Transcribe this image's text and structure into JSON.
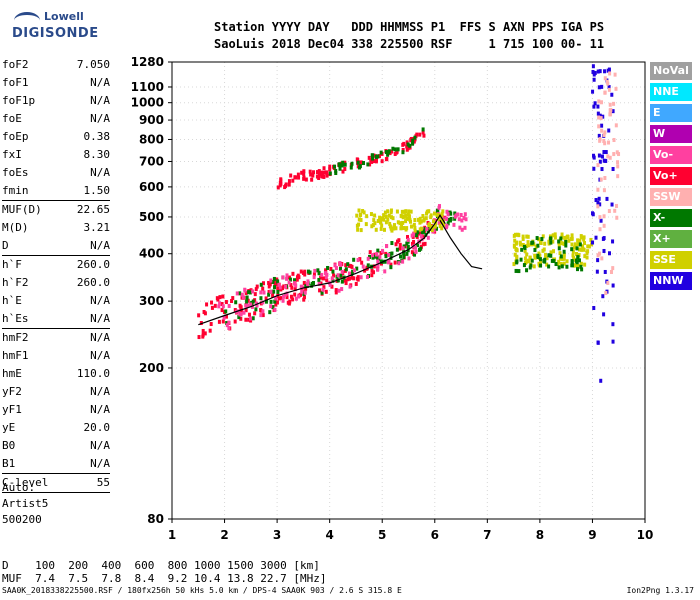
{
  "logo": {
    "line1": "Lowell",
    "line2": "DIGISONDE"
  },
  "header": {
    "line1": "Station YYYY DAY   DDD HHMMSS P1  FFS S AXN PPS IGA PS",
    "line2": "SaoLuis 2018 Dec04 338 225500 RSF     1 715 100 00- 11"
  },
  "params": {
    "group1": [
      {
        "label": "foF2",
        "value": "7.050"
      },
      {
        "label": "foF1",
        "value": "N/A"
      },
      {
        "label": "foF1p",
        "value": "N/A"
      },
      {
        "label": "foE",
        "value": "N/A"
      },
      {
        "label": "foEp",
        "value": "0.38"
      },
      {
        "label": "fxI",
        "value": "8.30"
      },
      {
        "label": "foEs",
        "value": "N/A"
      },
      {
        "label": "fmin",
        "value": "1.50"
      }
    ],
    "group2": [
      {
        "label": "MUF(D)",
        "value": "22.65"
      },
      {
        "label": "M(D)",
        "value": "3.21"
      },
      {
        "label": "D",
        "value": "N/A"
      }
    ],
    "group3": [
      {
        "label": "h`F",
        "value": "260.0"
      },
      {
        "label": "h`F2",
        "value": "260.0"
      },
      {
        "label": "h`E",
        "value": "N/A"
      },
      {
        "label": "h`Es",
        "value": "N/A"
      }
    ],
    "group4": [
      {
        "label": "hmF2",
        "value": "N/A"
      },
      {
        "label": "hmF1",
        "value": "N/A"
      },
      {
        "label": "hmE",
        "value": "110.0"
      },
      {
        "label": "yF2",
        "value": "N/A"
      },
      {
        "label": "yF1",
        "value": "N/A"
      },
      {
        "label": "yE",
        "value": "20.0"
      },
      {
        "label": "B0",
        "value": "N/A"
      },
      {
        "label": "B1",
        "value": "N/A"
      }
    ],
    "clevel": {
      "label": "C-level",
      "value": "55"
    }
  },
  "auto": {
    "line1": "Auto:",
    "line2": "Artist5",
    "line3": "500200"
  },
  "bottom": {
    "d_row": "D    100  200  400  600  800 1000 1500 3000 [km]",
    "muf_row": "MUF  7.4  7.5  7.8  8.4  9.2 10.4 13.8 22.7 [MHz]"
  },
  "footer": "SAA0K_2018338225500.RSF / 180fx256h 50 kHs 5.0 km / DPS-4 SAA0K 903 / 2.6 S 315.8 E",
  "version": "Ion2Png 1.3.17",
  "legend": [
    {
      "label": "NoVal",
      "color": "#a0a0a0"
    },
    {
      "label": "NNE",
      "color": "#00e8ff"
    },
    {
      "label": "E",
      "color": "#40a8ff"
    },
    {
      "label": "W",
      "color": "#b000b0"
    },
    {
      "label": "Vo-",
      "color": "#ff40a0"
    },
    {
      "label": "Vo+",
      "color": "#ff0030"
    },
    {
      "label": "SSW",
      "color": "#ffb0b0"
    },
    {
      "label": "X-",
      "color": "#007800"
    },
    {
      "label": "X+",
      "color": "#60b040"
    },
    {
      "label": "SSE",
      "color": "#d0d000"
    },
    {
      "label": "NNW",
      "color": "#2000e0"
    }
  ],
  "chart_data": {
    "type": "scatter",
    "title": "",
    "xlabel": "",
    "ylabel": "",
    "xlim": [
      1,
      10
    ],
    "ylim": [
      80,
      1280
    ],
    "y_scale": "log",
    "x_ticks": [
      1,
      2,
      3,
      4,
      5,
      6,
      7,
      8,
      9,
      10
    ],
    "y_ticks": [
      80,
      200,
      300,
      400,
      500,
      600,
      700,
      800,
      900,
      1000,
      1100,
      1280
    ],
    "traces": [
      {
        "name": "O-trace",
        "color": "#000000",
        "points": [
          [
            1.5,
            260
          ],
          [
            2.0,
            275
          ],
          [
            2.5,
            290
          ],
          [
            3.0,
            310
          ],
          [
            3.5,
            325
          ],
          [
            4.0,
            335
          ],
          [
            4.5,
            355
          ],
          [
            5.0,
            380
          ],
          [
            5.5,
            410
          ],
          [
            5.8,
            440
          ],
          [
            6.0,
            480
          ],
          [
            6.1,
            505
          ],
          [
            6.2,
            480
          ]
        ]
      },
      {
        "name": "X-trace",
        "color": "#000000",
        "points": [
          [
            6.1,
            490
          ],
          [
            6.3,
            440
          ],
          [
            6.5,
            400
          ],
          [
            6.7,
            370
          ],
          [
            6.9,
            365
          ]
        ]
      }
    ],
    "scatter_clusters": [
      {
        "series": "Vo+",
        "x_range": [
          1.5,
          6.2
        ],
        "y_along": "O-trace",
        "count": 220
      },
      {
        "series": "X-",
        "x_range": [
          2.0,
          6.4
        ],
        "y_along": "O-trace",
        "count": 120
      },
      {
        "series": "Vo-",
        "x_range": [
          1.8,
          6.6
        ],
        "y_along": "O-trace",
        "count": 140
      },
      {
        "series": "Vo+",
        "x_range": [
          3.0,
          5.8
        ],
        "y_along": "echo-F",
        "count": 110
      },
      {
        "series": "X-",
        "x_range": [
          4.0,
          5.8
        ],
        "y_along": "echo-F",
        "count": 40
      },
      {
        "series": "SSE",
        "x_range": [
          4.5,
          6.2
        ],
        "y_range": [
          460,
          520
        ],
        "count": 120
      },
      {
        "series": "SSE",
        "x_range": [
          7.5,
          9.0
        ],
        "y_range": [
          370,
          450
        ],
        "count": 140
      },
      {
        "series": "X-",
        "x_range": [
          7.5,
          8.8
        ],
        "y_range": [
          360,
          440
        ],
        "count": 60
      },
      {
        "series": "NNW",
        "x_range": [
          9.0,
          9.4
        ],
        "y_range": [
          180,
          1250
        ],
        "count": 70
      },
      {
        "series": "SSW",
        "x_range": [
          9.1,
          9.5
        ],
        "y_range": [
          300,
          1200
        ],
        "count": 60
      }
    ]
  }
}
